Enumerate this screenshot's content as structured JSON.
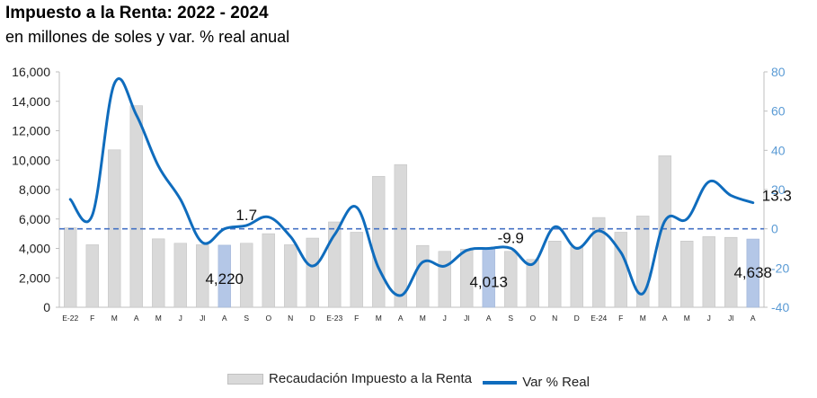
{
  "chart_data": {
    "type": "bar+line",
    "title": "Impuesto a la Renta: 2022 - 2024",
    "subtitle": "en millones de soles y var. % real anual",
    "categories": [
      "E-22",
      "F",
      "M",
      "A",
      "M",
      "J",
      "Jl",
      "A",
      "S",
      "O",
      "N",
      "D",
      "E-23",
      "F",
      "M",
      "A",
      "M",
      "J",
      "Jl",
      "A",
      "S",
      "O",
      "N",
      "D",
      "E-24",
      "F",
      "M",
      "A",
      "M",
      "J",
      "Jl",
      "A"
    ],
    "highlighted_indices": [
      7,
      19,
      31
    ],
    "series": [
      {
        "name": "Recaudación Impuesto a la Renta",
        "type": "bar",
        "axis": "left",
        "values": [
          5400,
          4250,
          10700,
          13700,
          4650,
          4350,
          4250,
          4220,
          4350,
          5000,
          4250,
          4700,
          5800,
          5100,
          8900,
          9700,
          4200,
          3800,
          3950,
          4013,
          3800,
          3250,
          4500,
          4100,
          6100,
          5100,
          6200,
          10300,
          4500,
          4800,
          4750,
          4638
        ]
      },
      {
        "name": "Var % Real",
        "type": "line",
        "axis": "right",
        "values": [
          15,
          7,
          74,
          58,
          32,
          15,
          -7,
          0,
          1.7,
          6,
          -4,
          -19,
          -3,
          11,
          -20,
          -34,
          -17,
          -19,
          -11,
          -10,
          -9.9,
          -18,
          1,
          -10,
          -1,
          -12,
          -33,
          4,
          5,
          24,
          17,
          13.3
        ]
      }
    ],
    "y_left": {
      "min": 0,
      "max": 16000,
      "ticks": [
        "0",
        "2,000",
        "4,000",
        "6,000",
        "8,000",
        "10,000",
        "12,000",
        "14,000",
        "16,000"
      ]
    },
    "y_right": {
      "min": -40,
      "max": 80,
      "ticks": [
        "-40",
        "-20",
        "0",
        "20",
        "40",
        "60",
        "80"
      ]
    },
    "annotations": [
      {
        "index": 7,
        "label": "4,220"
      },
      {
        "index": 8,
        "label": "1.7"
      },
      {
        "index": 19,
        "label": "4,013"
      },
      {
        "index": 20,
        "label": "-9.9"
      },
      {
        "index": 31,
        "label": "4,638"
      },
      {
        "index": 31,
        "label": "13.3"
      }
    ],
    "colors": {
      "bar": "#d9d9d9",
      "bar_highlight": "#b4c7e7",
      "line": "#0f6cbd",
      "zero_line": "#4472c4",
      "right_axis": "#5b9bd5"
    },
    "legend_position": "bottom"
  }
}
